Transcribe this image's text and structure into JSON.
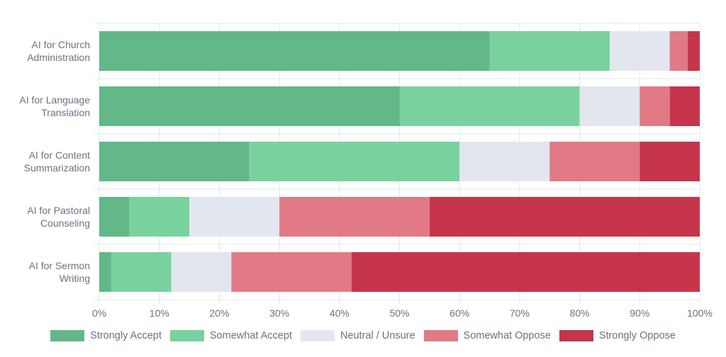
{
  "chart_data": {
    "type": "bar",
    "orientation": "horizontal",
    "stacked": true,
    "categories": [
      [
        "AI for Church",
        "Administration"
      ],
      [
        "AI for Language",
        "Translation"
      ],
      [
        "AI for Content",
        "Summarization"
      ],
      [
        "AI for Pastoral",
        "Counseling"
      ],
      [
        "AI for Sermon",
        "Writing"
      ]
    ],
    "series": [
      {
        "name": "Strongly Accept",
        "color": "#63b887",
        "values": [
          65,
          50,
          25,
          5,
          2
        ]
      },
      {
        "name": "Somewhat Accept",
        "color": "#79d29e",
        "values": [
          20,
          30,
          35,
          10,
          10
        ]
      },
      {
        "name": "Neutral / Unsure",
        "color": "#e2e7ef",
        "values": [
          10,
          10,
          15,
          15,
          10
        ]
      },
      {
        "name": "Somewhat Oppose",
        "color": "#e27a86",
        "values": [
          3,
          5,
          15,
          25,
          20
        ]
      },
      {
        "name": "Strongly Oppose",
        "color": "#c6354b",
        "values": [
          2,
          5,
          10,
          45,
          58
        ]
      }
    ],
    "xlim": [
      0,
      100
    ],
    "xticks": [
      "0%",
      "10%",
      "20%",
      "30%",
      "40%",
      "50%",
      "60%",
      "70%",
      "80%",
      "90%",
      "100%"
    ],
    "grid": true,
    "legend": "bottom"
  }
}
